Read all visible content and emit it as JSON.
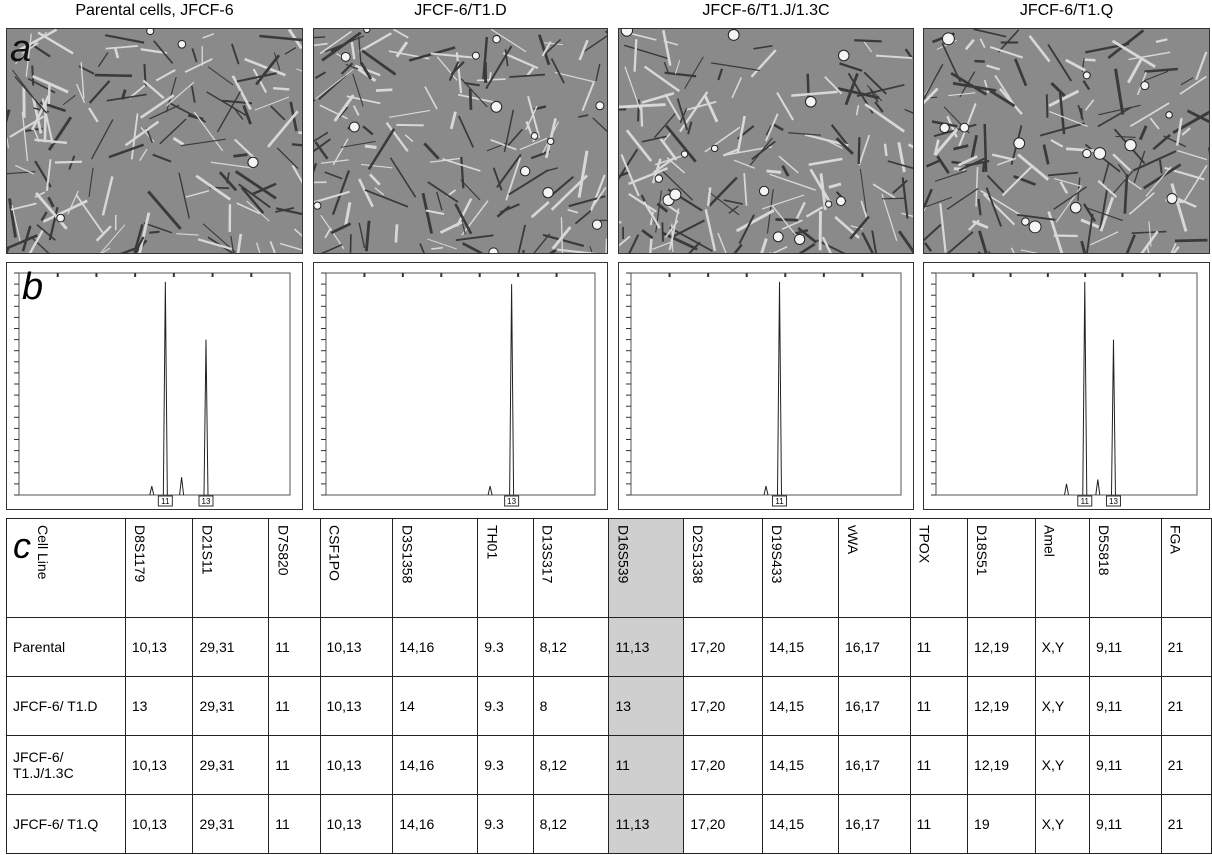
{
  "panel_labels": {
    "a": "a",
    "b": "b",
    "c": "c"
  },
  "panels": [
    {
      "title": "Parental cells, JFCF-6",
      "peak_labels": [
        "11",
        "13"
      ]
    },
    {
      "title": "JFCF-6/T1.D",
      "peak_labels": [
        "13"
      ]
    },
    {
      "title": "JFCF-6/T1.J/1.3C",
      "peak_labels": [
        "11"
      ]
    },
    {
      "title": "JFCF-6/T1.Q",
      "peak_labels": [
        "11",
        "13"
      ]
    }
  ],
  "table": {
    "header": [
      "Cell Line",
      "D8S1179",
      "D21S11",
      "D7S820",
      "CSF1PO",
      "D3S1358",
      "TH01",
      "D13S317",
      "D16S539",
      "D2S1338",
      "D19S433",
      "vWA",
      "TPOX",
      "D18S51",
      "Amel",
      "D5S818",
      "FGA"
    ],
    "rows": [
      [
        "Parental",
        "10,13",
        "29,31",
        "11",
        "10,13",
        "14,16",
        "9.3",
        "8,12",
        "11,13",
        "17,20",
        "14,15",
        "16,17",
        "11",
        "12,19",
        "X,Y",
        "9,11",
        "21"
      ],
      [
        "JFCF-6/ T1.D",
        "13",
        "29,31",
        "11",
        "10,13",
        "14",
        "9.3",
        "8",
        "13",
        "17,20",
        "14,15",
        "16,17",
        "11",
        "12,19",
        "X,Y",
        "9,11",
        "21"
      ],
      [
        "JFCF-6/ T1.J/1.3C",
        "10,13",
        "29,31",
        "11",
        "10,13",
        "14,16",
        "9.3",
        "8,12",
        "11",
        "17,20",
        "14,15",
        "16,17",
        "11",
        "12,19",
        "X,Y",
        "9,11",
        "21"
      ],
      [
        "JFCF-6/ T1.Q",
        "10,13",
        "29,31",
        "11",
        "10,13",
        "14,16",
        "9.3",
        "8,12",
        "11,13",
        "17,20",
        "14,15",
        "16,17",
        "11",
        "19",
        "X,Y",
        "9,11",
        "21"
      ]
    ]
  }
}
